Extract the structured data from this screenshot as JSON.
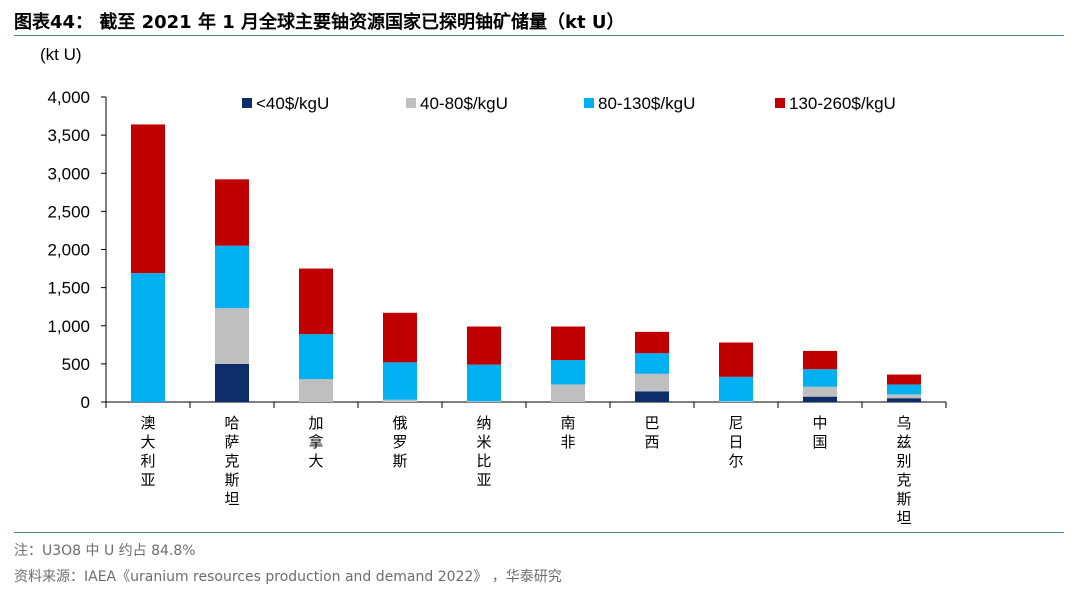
{
  "title": "图表44：  截至 2021 年 1 月全球主要铀资源国家已探明铀矿储量（kt U）",
  "note": "注：U3O8 中 U 约占 84.8%",
  "source": "资料来源：IAEA《uranium resources production and demand 2022》 ，华泰研究",
  "chart_data": {
    "type": "bar",
    "stacked": true,
    "unit_label": "(kt U)",
    "categories": [
      "澳大利亚",
      "哈萨克斯坦",
      "加拿大",
      "俄罗斯",
      "纳米比亚",
      "南非",
      "巴西",
      "尼日尔",
      "中国",
      "乌兹别克斯坦"
    ],
    "series": [
      {
        "name": "<40$/kgU",
        "color": "#0d2d6b",
        "values": [
          0,
          500,
          0,
          0,
          0,
          0,
          140,
          0,
          70,
          50
        ]
      },
      {
        "name": "40-80$/kgU",
        "color": "#bfbfbf",
        "values": [
          0,
          730,
          300,
          30,
          10,
          230,
          230,
          10,
          130,
          50
        ]
      },
      {
        "name": "80-130$/kgU",
        "color": "#00b0f0",
        "values": [
          1690,
          820,
          590,
          490,
          480,
          320,
          270,
          320,
          230,
          130
        ]
      },
      {
        "name": "130-260$/kgU",
        "color": "#c00000",
        "values": [
          1950,
          870,
          860,
          650,
          500,
          440,
          280,
          450,
          240,
          130
        ]
      }
    ],
    "yticks": [
      "0",
      "500",
      "1,000",
      "1,500",
      "2,000",
      "2,500",
      "3,000",
      "3,500",
      "4,000"
    ],
    "ylim": [
      0,
      4000
    ],
    "legend_position": "top",
    "grid": false
  }
}
